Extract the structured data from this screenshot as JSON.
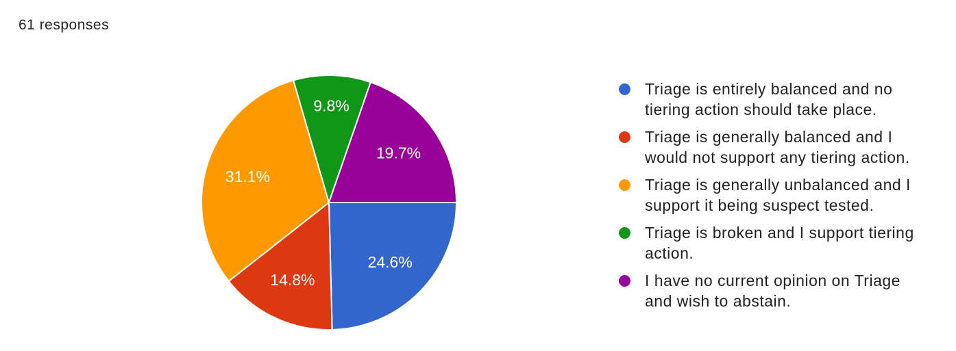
{
  "header": {
    "responses_label": "61 responses"
  },
  "chart_data": {
    "type": "pie",
    "title": "",
    "total_responses": 61,
    "legend_position": "right",
    "start_angle_deg_from_east_clockwise": 0,
    "label_color": "#ffffff",
    "slices": [
      {
        "label": "Triage is entirely balanced and no tiering action should take place.",
        "pct": 24.6,
        "percent_label": "24.6%",
        "color": "#3366CC"
      },
      {
        "label": "Triage is generally balanced and I would not support any tiering action.",
        "pct": 14.8,
        "percent_label": "14.8%",
        "color": "#DC3912"
      },
      {
        "label": "Triage is generally unbalanced and I support it being suspect tested.",
        "pct": 31.1,
        "percent_label": "31.1%",
        "color": "#FF9900"
      },
      {
        "label": "Triage is broken and I support tiering action.",
        "pct": 9.8,
        "percent_label": "9.8%",
        "color": "#109618"
      },
      {
        "label": "I have no current opinion on Triage and wish to abstain.",
        "pct": 19.7,
        "percent_label": "19.7%",
        "color": "#990099"
      }
    ]
  }
}
